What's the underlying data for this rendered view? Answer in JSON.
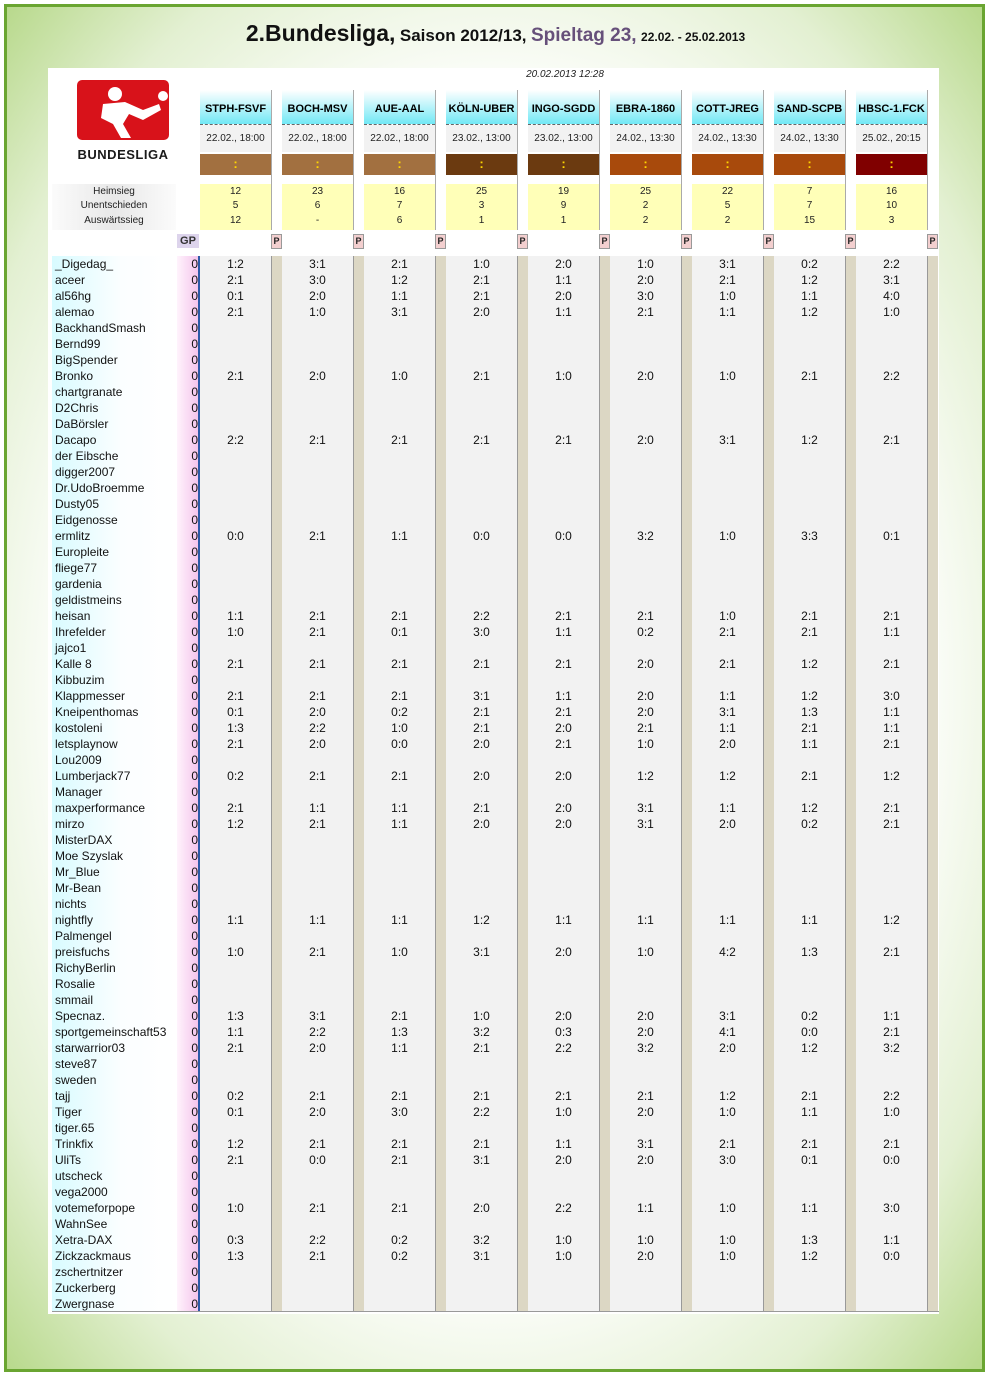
{
  "header": {
    "league": "2.Bundesliga,",
    "season": "Saison 2012/13,",
    "matchday": "Spieltag 23,",
    "dates": "22.02. - 25.02.2013"
  },
  "updated": "20.02.2013 12:28",
  "logo": {
    "text": "BUNDESLIGA",
    "color": "#d8121a"
  },
  "stat_labels": [
    "Heimsieg",
    "Unentschieden",
    "Auswärtssieg"
  ],
  "gp_label": "GP",
  "p_label": "P",
  "bar_symbol": ":",
  "matches": [
    {
      "teams": "STPH-FSVF",
      "date": "22.02., 18:00",
      "bar_color": "#a27040",
      "home": "12",
      "draw": "5",
      "away": "12"
    },
    {
      "teams": "BOCH-MSV",
      "date": "22.02., 18:00",
      "bar_color": "#a27040",
      "home": "23",
      "draw": "6",
      "away": "-"
    },
    {
      "teams": "AUE-AAL",
      "date": "22.02., 18:00",
      "bar_color": "#a27040",
      "home": "16",
      "draw": "7",
      "away": "6"
    },
    {
      "teams": "KÖLN-UBER",
      "date": "23.02., 13:00",
      "bar_color": "#6b3a10",
      "home": "25",
      "draw": "3",
      "away": "1"
    },
    {
      "teams": "INGO-SGDD",
      "date": "23.02., 13:00",
      "bar_color": "#6b3a10",
      "home": "19",
      "draw": "9",
      "away": "1"
    },
    {
      "teams": "EBRA-1860",
      "date": "24.02., 13:30",
      "bar_color": "#a84a0c",
      "home": "25",
      "draw": "2",
      "away": "2"
    },
    {
      "teams": "COTT-JREG",
      "date": "24.02., 13:30",
      "bar_color": "#a84a0c",
      "home": "22",
      "draw": "5",
      "away": "2"
    },
    {
      "teams": "SAND-SCPB",
      "date": "24.02., 13:30",
      "bar_color": "#a84a0c",
      "home": "7",
      "draw": "7",
      "away": "15"
    },
    {
      "teams": "HBSC-1.FCK",
      "date": "25.02., 20:15",
      "bar_color": "#800000",
      "home": "16",
      "draw": "10",
      "away": "3"
    }
  ],
  "players": [
    {
      "name": "_Digedag_",
      "gp": "0",
      "tips": [
        "1:2",
        "3:1",
        "2:1",
        "1:0",
        "2:0",
        "1:0",
        "3:1",
        "0:2",
        "2:2"
      ]
    },
    {
      "name": "aceer",
      "gp": "0",
      "tips": [
        "2:1",
        "3:0",
        "1:2",
        "2:1",
        "1:1",
        "2:0",
        "2:1",
        "1:2",
        "3:1"
      ]
    },
    {
      "name": "al56hg",
      "gp": "0",
      "tips": [
        "0:1",
        "2:0",
        "1:1",
        "2:1",
        "2:0",
        "3:0",
        "1:0",
        "1:1",
        "4:0"
      ]
    },
    {
      "name": "alemao",
      "gp": "0",
      "tips": [
        "2:1",
        "1:0",
        "3:1",
        "2:0",
        "1:1",
        "2:1",
        "1:1",
        "1:2",
        "1:0"
      ]
    },
    {
      "name": "BackhandSmash",
      "gp": "0",
      "tips": [
        "",
        "",
        "",
        "",
        "",
        "",
        "",
        "",
        ""
      ]
    },
    {
      "name": "Bernd99",
      "gp": "0",
      "tips": [
        "",
        "",
        "",
        "",
        "",
        "",
        "",
        "",
        ""
      ]
    },
    {
      "name": "BigSpender",
      "gp": "0",
      "tips": [
        "",
        "",
        "",
        "",
        "",
        "",
        "",
        "",
        ""
      ]
    },
    {
      "name": "Bronko",
      "gp": "0",
      "tips": [
        "2:1",
        "2:0",
        "1:0",
        "2:1",
        "1:0",
        "2:0",
        "1:0",
        "2:1",
        "2:2"
      ]
    },
    {
      "name": "chartgranate",
      "gp": "0",
      "tips": [
        "",
        "",
        "",
        "",
        "",
        "",
        "",
        "",
        ""
      ]
    },
    {
      "name": "D2Chris",
      "gp": "0",
      "tips": [
        "",
        "",
        "",
        "",
        "",
        "",
        "",
        "",
        ""
      ]
    },
    {
      "name": "DaBörsler",
      "gp": "0",
      "tips": [
        "",
        "",
        "",
        "",
        "",
        "",
        "",
        "",
        ""
      ]
    },
    {
      "name": "Dacapo",
      "gp": "0",
      "tips": [
        "2:2",
        "2:1",
        "2:1",
        "2:1",
        "2:1",
        "2:0",
        "3:1",
        "1:2",
        "2:1"
      ]
    },
    {
      "name": "der Eibsche",
      "gp": "0",
      "tips": [
        "",
        "",
        "",
        "",
        "",
        "",
        "",
        "",
        ""
      ]
    },
    {
      "name": "digger2007",
      "gp": "0",
      "tips": [
        "",
        "",
        "",
        "",
        "",
        "",
        "",
        "",
        ""
      ]
    },
    {
      "name": "Dr.UdoBroemme",
      "gp": "0",
      "tips": [
        "",
        "",
        "",
        "",
        "",
        "",
        "",
        "",
        ""
      ]
    },
    {
      "name": "Dusty05",
      "gp": "0",
      "tips": [
        "",
        "",
        "",
        "",
        "",
        "",
        "",
        "",
        ""
      ]
    },
    {
      "name": "Eidgenosse",
      "gp": "0",
      "tips": [
        "",
        "",
        "",
        "",
        "",
        "",
        "",
        "",
        ""
      ]
    },
    {
      "name": "ermlitz",
      "gp": "0",
      "tips": [
        "0:0",
        "2:1",
        "1:1",
        "0:0",
        "0:0",
        "3:2",
        "1:0",
        "3:3",
        "0:1"
      ]
    },
    {
      "name": "Europleite",
      "gp": "0",
      "tips": [
        "",
        "",
        "",
        "",
        "",
        "",
        "",
        "",
        ""
      ]
    },
    {
      "name": "fliege77",
      "gp": "0",
      "tips": [
        "",
        "",
        "",
        "",
        "",
        "",
        "",
        "",
        ""
      ]
    },
    {
      "name": "gardenia",
      "gp": "0",
      "tips": [
        "",
        "",
        "",
        "",
        "",
        "",
        "",
        "",
        ""
      ]
    },
    {
      "name": "geldistmeins",
      "gp": "0",
      "tips": [
        "",
        "",
        "",
        "",
        "",
        "",
        "",
        "",
        ""
      ]
    },
    {
      "name": "heisan",
      "gp": "0",
      "tips": [
        "1:1",
        "2:1",
        "2:1",
        "2:2",
        "2:1",
        "2:1",
        "1:0",
        "2:1",
        "2:1"
      ]
    },
    {
      "name": "Ihrefelder",
      "gp": "0",
      "tips": [
        "1:0",
        "2:1",
        "0:1",
        "3:0",
        "1:1",
        "0:2",
        "2:1",
        "2:1",
        "1:1"
      ]
    },
    {
      "name": "jajco1",
      "gp": "0",
      "tips": [
        "",
        "",
        "",
        "",
        "",
        "",
        "",
        "",
        ""
      ]
    },
    {
      "name": "Kalle 8",
      "gp": "0",
      "tips": [
        "2:1",
        "2:1",
        "2:1",
        "2:1",
        "2:1",
        "2:0",
        "2:1",
        "1:2",
        "2:1"
      ]
    },
    {
      "name": "Kibbuzim",
      "gp": "0",
      "tips": [
        "",
        "",
        "",
        "",
        "",
        "",
        "",
        "",
        ""
      ]
    },
    {
      "name": "Klappmesser",
      "gp": "0",
      "tips": [
        "2:1",
        "2:1",
        "2:1",
        "3:1",
        "1:1",
        "2:0",
        "1:1",
        "1:2",
        "3:0"
      ]
    },
    {
      "name": "Kneipenthomas",
      "gp": "0",
      "tips": [
        "0:1",
        "2:0",
        "0:2",
        "2:1",
        "2:1",
        "2:0",
        "3:1",
        "1:3",
        "1:1"
      ]
    },
    {
      "name": "kostoleni",
      "gp": "0",
      "tips": [
        "1:3",
        "2:2",
        "1:0",
        "2:1",
        "2:0",
        "2:1",
        "1:1",
        "2:1",
        "1:1"
      ]
    },
    {
      "name": "letsplaynow",
      "gp": "0",
      "tips": [
        "2:1",
        "2:0",
        "0:0",
        "2:0",
        "2:1",
        "1:0",
        "2:0",
        "1:1",
        "2:1"
      ]
    },
    {
      "name": "Lou2009",
      "gp": "0",
      "tips": [
        "",
        "",
        "",
        "",
        "",
        "",
        "",
        "",
        ""
      ]
    },
    {
      "name": "Lumberjack77",
      "gp": "0",
      "tips": [
        "0:2",
        "2:1",
        "2:1",
        "2:0",
        "2:0",
        "1:2",
        "1:2",
        "2:1",
        "1:2"
      ]
    },
    {
      "name": "Manager",
      "gp": "0",
      "tips": [
        "",
        "",
        "",
        "",
        "",
        "",
        "",
        "",
        ""
      ]
    },
    {
      "name": "maxperformance",
      "gp": "0",
      "tips": [
        "2:1",
        "1:1",
        "1:1",
        "2:1",
        "2:0",
        "3:1",
        "1:1",
        "1:2",
        "2:1"
      ]
    },
    {
      "name": "mirzo",
      "gp": "0",
      "tips": [
        "1:2",
        "2:1",
        "1:1",
        "2:0",
        "2:0",
        "3:1",
        "2:0",
        "0:2",
        "2:1"
      ]
    },
    {
      "name": "MisterDAX",
      "gp": "0",
      "tips": [
        "",
        "",
        "",
        "",
        "",
        "",
        "",
        "",
        ""
      ]
    },
    {
      "name": "Moe Szyslak",
      "gp": "0",
      "tips": [
        "",
        "",
        "",
        "",
        "",
        "",
        "",
        "",
        ""
      ]
    },
    {
      "name": "Mr_Blue",
      "gp": "0",
      "tips": [
        "",
        "",
        "",
        "",
        "",
        "",
        "",
        "",
        ""
      ]
    },
    {
      "name": "Mr-Bean",
      "gp": "0",
      "tips": [
        "",
        "",
        "",
        "",
        "",
        "",
        "",
        "",
        ""
      ]
    },
    {
      "name": "nichts",
      "gp": "0",
      "tips": [
        "",
        "",
        "",
        "",
        "",
        "",
        "",
        "",
        ""
      ]
    },
    {
      "name": "nightfly",
      "gp": "0",
      "tips": [
        "1:1",
        "1:1",
        "1:1",
        "1:2",
        "1:1",
        "1:1",
        "1:1",
        "1:1",
        "1:2"
      ]
    },
    {
      "name": "Palmengel",
      "gp": "0",
      "tips": [
        "",
        "",
        "",
        "",
        "",
        "",
        "",
        "",
        ""
      ]
    },
    {
      "name": "preisfuchs",
      "gp": "0",
      "tips": [
        "1:0",
        "2:1",
        "1:0",
        "3:1",
        "2:0",
        "1:0",
        "4:2",
        "1:3",
        "2:1"
      ]
    },
    {
      "name": "RichyBerlin",
      "gp": "0",
      "tips": [
        "",
        "",
        "",
        "",
        "",
        "",
        "",
        "",
        ""
      ]
    },
    {
      "name": "Rosalie",
      "gp": "0",
      "tips": [
        "",
        "",
        "",
        "",
        "",
        "",
        "",
        "",
        ""
      ]
    },
    {
      "name": "smmail",
      "gp": "0",
      "tips": [
        "",
        "",
        "",
        "",
        "",
        "",
        "",
        "",
        ""
      ]
    },
    {
      "name": "Specnaz.",
      "gp": "0",
      "tips": [
        "1:3",
        "3:1",
        "2:1",
        "1:0",
        "2:0",
        "2:0",
        "3:1",
        "0:2",
        "1:1"
      ]
    },
    {
      "name": "sportgemeinschaft53",
      "gp": "0",
      "tips": [
        "1:1",
        "2:2",
        "1:3",
        "3:2",
        "0:3",
        "2:0",
        "4:1",
        "0:0",
        "2:1"
      ]
    },
    {
      "name": "starwarrior03",
      "gp": "0",
      "tips": [
        "2:1",
        "2:0",
        "1:1",
        "2:1",
        "2:2",
        "3:2",
        "2:0",
        "1:2",
        "3:2"
      ]
    },
    {
      "name": "steve87",
      "gp": "0",
      "tips": [
        "",
        "",
        "",
        "",
        "",
        "",
        "",
        "",
        ""
      ]
    },
    {
      "name": "sweden",
      "gp": "0",
      "tips": [
        "",
        "",
        "",
        "",
        "",
        "",
        "",
        "",
        ""
      ]
    },
    {
      "name": "tajj",
      "gp": "0",
      "tips": [
        "0:2",
        "2:1",
        "2:1",
        "2:1",
        "2:1",
        "2:1",
        "1:2",
        "2:1",
        "2:2"
      ]
    },
    {
      "name": "Tiger",
      "gp": "0",
      "tips": [
        "0:1",
        "2:0",
        "3:0",
        "2:2",
        "1:0",
        "2:0",
        "1:0",
        "1:1",
        "1:0"
      ]
    },
    {
      "name": "tiger.65",
      "gp": "0",
      "tips": [
        "",
        "",
        "",
        "",
        "",
        "",
        "",
        "",
        ""
      ]
    },
    {
      "name": "Trinkfix",
      "gp": "0",
      "tips": [
        "1:2",
        "2:1",
        "2:1",
        "2:1",
        "1:1",
        "3:1",
        "2:1",
        "2:1",
        "2:1"
      ]
    },
    {
      "name": "UliTs",
      "gp": "0",
      "tips": [
        "2:1",
        "0:0",
        "2:1",
        "3:1",
        "2:0",
        "2:0",
        "3:0",
        "0:1",
        "0:0"
      ]
    },
    {
      "name": "utscheck",
      "gp": "0",
      "tips": [
        "",
        "",
        "",
        "",
        "",
        "",
        "",
        "",
        ""
      ]
    },
    {
      "name": "vega2000",
      "gp": "0",
      "tips": [
        "",
        "",
        "",
        "",
        "",
        "",
        "",
        "",
        ""
      ]
    },
    {
      "name": "votemeforpope",
      "gp": "0",
      "tips": [
        "1:0",
        "2:1",
        "2:1",
        "2:0",
        "2:2",
        "1:1",
        "1:0",
        "1:1",
        "3:0"
      ]
    },
    {
      "name": "WahnSee",
      "gp": "0",
      "tips": [
        "",
        "",
        "",
        "",
        "",
        "",
        "",
        "",
        ""
      ]
    },
    {
      "name": "Xetra-DAX",
      "gp": "0",
      "tips": [
        "0:3",
        "2:2",
        "0:2",
        "3:2",
        "1:0",
        "1:0",
        "1:0",
        "1:3",
        "1:1"
      ]
    },
    {
      "name": "Zickzackmaus",
      "gp": "0",
      "tips": [
        "1:3",
        "2:1",
        "0:2",
        "3:1",
        "1:0",
        "2:0",
        "1:0",
        "1:2",
        "0:0"
      ]
    },
    {
      "name": "zschertnitzer",
      "gp": "0",
      "tips": [
        "",
        "",
        "",
        "",
        "",
        "",
        "",
        "",
        ""
      ]
    },
    {
      "name": "Zuckerberg",
      "gp": "0",
      "tips": [
        "",
        "",
        "",
        "",
        "",
        "",
        "",
        "",
        ""
      ]
    },
    {
      "name": "Zwergnase",
      "gp": "0",
      "tips": [
        "",
        "",
        "",
        "",
        "",
        "",
        "",
        "",
        ""
      ]
    }
  ]
}
